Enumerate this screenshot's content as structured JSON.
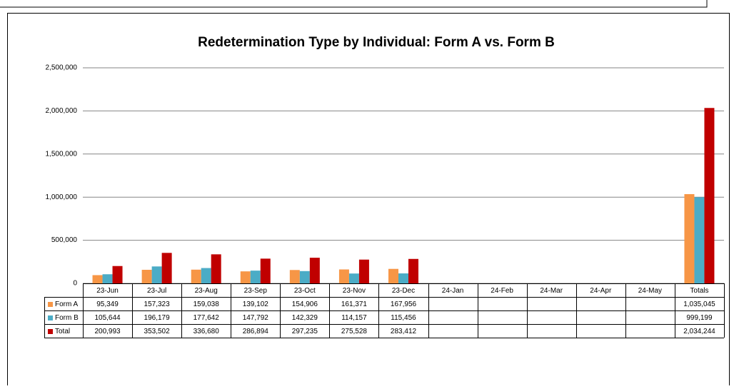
{
  "chart_data": {
    "type": "bar",
    "title": "Redetermination Type by Individual: Form A vs. Form B",
    "categories": [
      "23-Jun",
      "23-Jul",
      "23-Aug",
      "23-Sep",
      "23-Oct",
      "23-Nov",
      "23-Dec",
      "24-Jan",
      "24-Feb",
      "24-Mar",
      "24-Apr",
      "24-May",
      "Totals"
    ],
    "series": [
      {
        "name": "Form A",
        "color": "#f79646",
        "values": [
          95349,
          157323,
          159038,
          139102,
          154906,
          161371,
          167956,
          null,
          null,
          null,
          null,
          null,
          1035045
        ],
        "value_labels": [
          "95,349",
          "157,323",
          "159,038",
          "139,102",
          "154,906",
          "161,371",
          "167,956",
          null,
          null,
          null,
          null,
          null,
          "1,035,045"
        ]
      },
      {
        "name": "Form B",
        "color": "#4bacc6",
        "values": [
          105644,
          196179,
          177642,
          147792,
          142329,
          114157,
          115456,
          null,
          null,
          null,
          null,
          null,
          999199
        ],
        "value_labels": [
          "105,644",
          "196,179",
          "177,642",
          "147,792",
          "142,329",
          "114,157",
          "115,456",
          null,
          null,
          null,
          null,
          null,
          "999,199"
        ]
      },
      {
        "name": "Total",
        "color": "#c00000",
        "values": [
          200993,
          353502,
          336680,
          286894,
          297235,
          275528,
          283412,
          null,
          null,
          null,
          null,
          null,
          2034244
        ],
        "value_labels": [
          "200,993",
          "353,502",
          "336,680",
          "286,894",
          "297,235",
          "275,528",
          "283,412",
          null,
          null,
          null,
          null,
          null,
          "2,034,244"
        ]
      }
    ],
    "ylim": [
      0,
      2500000
    ],
    "yticks": [
      0,
      {
        "value": 500000,
        "label": "500,000"
      },
      {
        "value": 1000000,
        "label": "1,000,000"
      },
      {
        "value": 1500000,
        "label": "1,500,000"
      },
      {
        "value": 2000000,
        "label": "2,000,000"
      },
      {
        "value": 2500000,
        "label": "2,500,000"
      }
    ],
    "grid": true
  }
}
